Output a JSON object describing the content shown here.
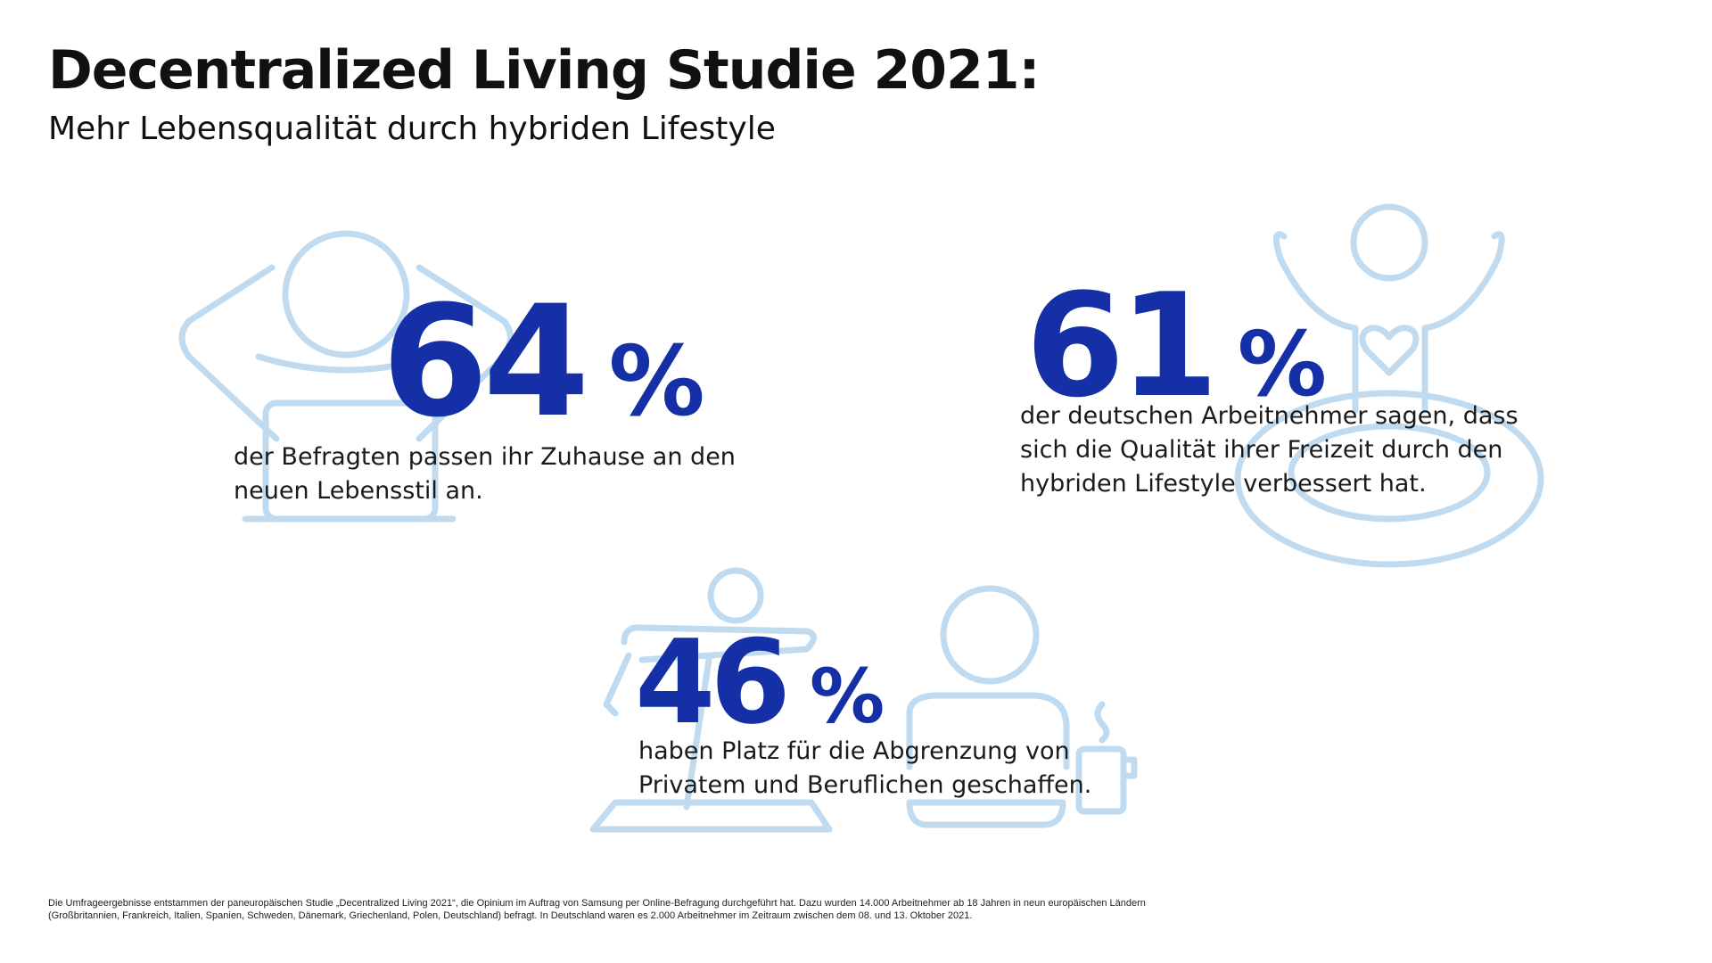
{
  "title": "Decentralized Living Studie 2021:",
  "subtitle": "Mehr Lebensqualität durch hybriden Lifestyle",
  "colors": {
    "accent": "#1530a6",
    "illustration": "#c0dbef",
    "text": "#1a1a1a"
  },
  "stats": [
    {
      "value": "64",
      "unit": "%",
      "icon": "relaxing-person-at-laptop-icon",
      "text": "der Befragten passen ihr Zuhause an den neuen Lebensstil an."
    },
    {
      "value": "61",
      "unit": "%",
      "icon": "cheering-person-with-heart-icon",
      "text": "der deutschen Arbeitnehmer sagen, dass sich die Qualität ihrer Freizeit durch den hybriden Lifestyle verbessert hat."
    },
    {
      "value": "46",
      "unit": "%",
      "icon": "yoga-and-work-desk-icon",
      "text": "haben Platz für die Abgrenzung von Privatem und Beruflichen geschaffen."
    }
  ],
  "footnote": "Die Umfrageergebnisse entstammen der paneuropäischen Studie „Decentralized Living 2021“, die Opinium im Auftrag von Samsung per Online-Befragung durchgeführt hat. Dazu wurden 14.000 Arbeitnehmer ab 18 Jahren in neun europäischen Ländern (Großbritannien, Frankreich, Italien, Spanien, Schweden, Dänemark, Griechenland, Polen, Deutschland) befragt. In Deutschland waren es 2.000 Arbeitnehmer im Zeitraum zwischen dem 08. und 13. Oktober 2021."
}
